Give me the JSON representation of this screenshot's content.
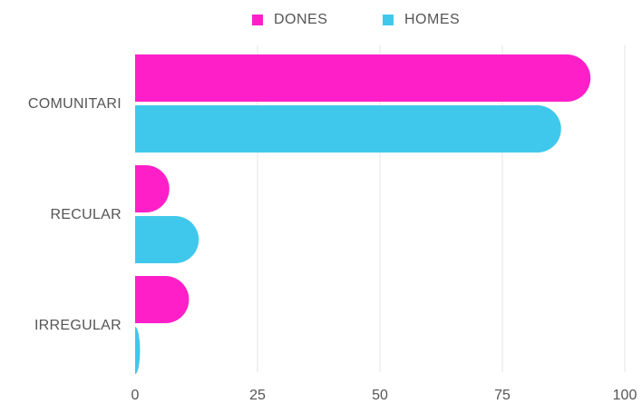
{
  "chart_data": {
    "type": "bar",
    "orientation": "horizontal",
    "categories": [
      "COMUNITARI",
      "RECULAR",
      "IRREGULAR"
    ],
    "series": [
      {
        "name": "DONES",
        "color": "#ff1fc8",
        "values": [
          93,
          7,
          11
        ]
      },
      {
        "name": "HOMES",
        "color": "#40c8ec",
        "values": [
          87,
          13,
          1
        ]
      }
    ],
    "xlim": [
      0,
      100
    ],
    "xticks": [
      "0",
      "25",
      "50",
      "75",
      "100"
    ],
    "grid": "vertical",
    "legend_position": "top-center"
  }
}
